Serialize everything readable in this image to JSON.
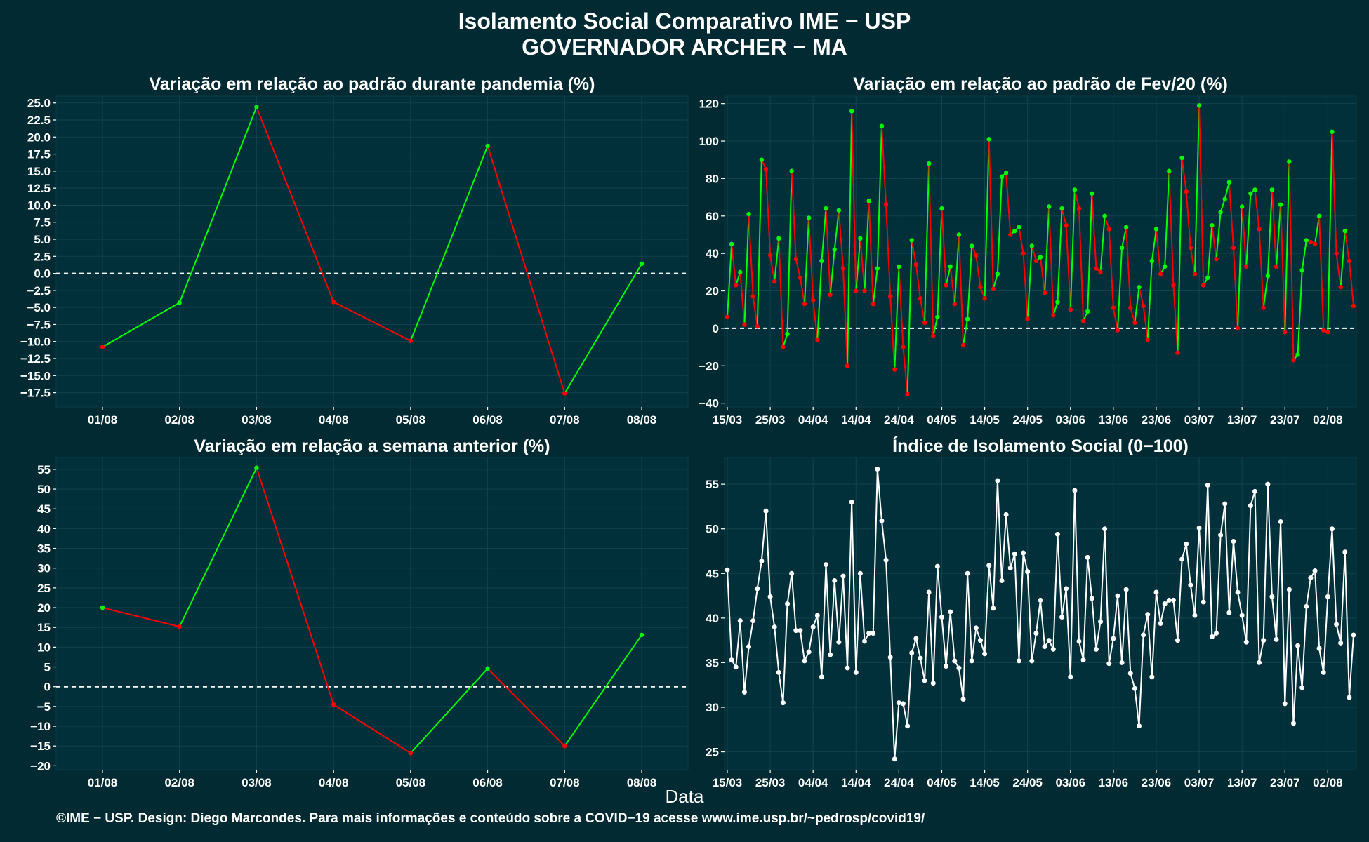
{
  "title_line1": "Isolamento Social Comparativo IME − USP",
  "title_line2": "GOVERNADOR ARCHER − MA",
  "xlabel": "Data",
  "footer": "©IME − USP. Design: Diego Marcondes. Para mais informações e conteúdo sobre a COVID−19 acesse www.ime.usp.br/~pedrosp/covid19/",
  "colors": {
    "background": "#022a33",
    "panel": "#02303a",
    "grid": "#10434d",
    "up": "#00ff00",
    "down": "#ff0000",
    "index": "#ffffff",
    "reference": "#ffffff"
  },
  "chart_data": [
    {
      "id": "pandemic",
      "type": "line",
      "title": "Variação em relação ao padrão durante pandemia (%)",
      "x": [
        "01/08",
        "02/08",
        "03/08",
        "04/08",
        "05/08",
        "06/08",
        "07/08",
        "08/08"
      ],
      "values": [
        -10.8,
        -4.3,
        24.4,
        -4.2,
        -9.9,
        18.7,
        -17.6,
        1.4
      ],
      "ylim": [
        -19.6,
        26.0
      ],
      "yticks": [
        -17.5,
        -15.0,
        -12.5,
        -10.0,
        -7.5,
        -5.0,
        -2.5,
        0.0,
        2.5,
        5.0,
        7.5,
        10.0,
        12.5,
        15.0,
        17.5,
        20.0,
        22.5,
        25.0
      ],
      "ytick_labels": [
        "−17.5",
        "−15.0",
        "−12.5",
        "−10.0",
        "−7.5",
        "−5.0",
        "−2.5",
        "0.0",
        "2.5",
        "5.0",
        "7.5",
        "10.0",
        "12.5",
        "15.0",
        "17.5",
        "20.0",
        "22.5",
        "25.0"
      ],
      "reference_line": 0,
      "grid": true
    },
    {
      "id": "feb20",
      "type": "line",
      "title": "Variação em relação ao padrão de Fev/20 (%)",
      "x_start": "15/03",
      "x_tick_labels": [
        "15/03",
        "25/03",
        "04/04",
        "14/04",
        "24/04",
        "04/05",
        "14/05",
        "24/05",
        "03/06",
        "13/06",
        "23/06",
        "03/07",
        "13/07",
        "23/07",
        "02/08"
      ],
      "x_tick_days": [
        0,
        10,
        20,
        30,
        40,
        50,
        60,
        70,
        80,
        90,
        100,
        110,
        120,
        130,
        140
      ],
      "values": [
        6,
        45,
        23,
        30,
        2,
        61,
        17,
        1,
        90,
        85,
        39,
        25,
        48,
        -10,
        -3,
        84,
        37,
        27,
        13,
        59,
        15,
        -6,
        36,
        64,
        18,
        42,
        63,
        32,
        -20,
        116,
        20,
        48,
        20,
        68,
        13,
        32,
        108,
        66,
        17,
        -22,
        33,
        -10,
        -35,
        47,
        34,
        16,
        3,
        88,
        -4,
        6,
        64,
        23,
        33,
        13,
        50,
        -9,
        5,
        44,
        39,
        22,
        16,
        101,
        21,
        29,
        81,
        83,
        50,
        52,
        54,
        40,
        5,
        44,
        36,
        38,
        19,
        65,
        7,
        14,
        64,
        55,
        10,
        74,
        64,
        4,
        9,
        72,
        32,
        30,
        60,
        53,
        11,
        -1,
        43,
        54,
        11,
        3,
        22,
        12,
        -6,
        36,
        53,
        29,
        33,
        84,
        23,
        -13,
        91,
        73,
        43,
        29,
        119,
        23,
        27,
        55,
        37,
        62,
        69,
        78,
        43,
        0,
        65,
        33,
        72,
        74,
        53,
        11,
        28,
        74,
        33,
        66,
        -2,
        89,
        -17,
        -14,
        31,
        47,
        46,
        45,
        60,
        -1,
        -2,
        105,
        40,
        22,
        52,
        36,
        12
      ],
      "ylim": [
        -42,
        124
      ],
      "yticks": [
        -40,
        -20,
        0,
        20,
        40,
        60,
        80,
        100,
        120
      ],
      "ytick_labels": [
        "−40",
        "−20",
        "0",
        "20",
        "40",
        "60",
        "80",
        "100",
        "120"
      ],
      "reference_line": 0,
      "grid": true
    },
    {
      "id": "week",
      "type": "line",
      "title": "Variação em relação a semana anterior (%)",
      "x": [
        "01/08",
        "02/08",
        "03/08",
        "04/08",
        "05/08",
        "06/08",
        "07/08",
        "08/08"
      ],
      "values": [
        20.0,
        15.2,
        55.4,
        -4.5,
        -16.8,
        4.6,
        -15.0,
        13.1
      ],
      "ylim": [
        -21,
        58
      ],
      "yticks": [
        -20,
        -15,
        -10,
        -5,
        0,
        5,
        10,
        15,
        20,
        25,
        30,
        35,
        40,
        45,
        50,
        55
      ],
      "ytick_labels": [
        "−20",
        "−15",
        "−10",
        "−5",
        "0",
        "5",
        "10",
        "15",
        "20",
        "25",
        "30",
        "35",
        "40",
        "45",
        "50",
        "55"
      ],
      "reference_line": 0,
      "grid": true
    },
    {
      "id": "index",
      "type": "line",
      "title": "Índice de Isolamento Social (0−100)",
      "x_start": "15/03",
      "x_tick_labels": [
        "15/03",
        "25/03",
        "04/04",
        "14/04",
        "24/04",
        "04/05",
        "14/05",
        "24/05",
        "03/06",
        "13/06",
        "23/06",
        "03/07",
        "13/07",
        "23/07",
        "02/08"
      ],
      "x_tick_days": [
        0,
        10,
        20,
        30,
        40,
        50,
        60,
        70,
        80,
        90,
        100,
        110,
        120,
        130,
        140
      ],
      "values": [
        45.4,
        35.3,
        34.5,
        39.7,
        31.7,
        36.8,
        39.7,
        43.3,
        46.4,
        52.0,
        42.4,
        39.0,
        33.9,
        30.5,
        41.6,
        45.0,
        38.6,
        38.6,
        35.2,
        36.2,
        39.0,
        40.3,
        33.4,
        46.0,
        35.9,
        44.2,
        37.3,
        44.7,
        34.4,
        53.0,
        33.9,
        45.0,
        37.4,
        38.3,
        38.3,
        56.7,
        50.9,
        46.5,
        35.6,
        24.2,
        30.5,
        30.4,
        27.9,
        36.1,
        37.7,
        35.5,
        33.0,
        42.9,
        32.7,
        45.8,
        40.1,
        34.6,
        40.7,
        35.2,
        34.4,
        30.9,
        45.0,
        35.2,
        38.9,
        37.5,
        36.0,
        45.9,
        41.1,
        55.4,
        44.2,
        51.6,
        45.6,
        47.2,
        35.2,
        47.3,
        45.2,
        35.2,
        38.3,
        42.0,
        36.8,
        37.5,
        36.5,
        49.4,
        40.1,
        43.3,
        33.4,
        54.3,
        37.4,
        35.3,
        46.8,
        42.2,
        36.5,
        39.6,
        50.0,
        34.9,
        37.7,
        42.5,
        35.0,
        43.2,
        33.8,
        32.1,
        27.9,
        38.1,
        40.4,
        33.4,
        42.9,
        39.4,
        41.6,
        42.0,
        42.0,
        37.5,
        46.6,
        48.3,
        43.7,
        40.3,
        50.1,
        41.8,
        54.9,
        37.9,
        38.3,
        49.3,
        52.8,
        40.6,
        48.6,
        42.9,
        40.3,
        37.3,
        52.6,
        54.2,
        35.0,
        37.5,
        55.0,
        42.4,
        37.6,
        50.8,
        30.4,
        43.2,
        28.2,
        36.9,
        32.2,
        41.3,
        44.5,
        45.3,
        36.6,
        33.9,
        42.4,
        50.0,
        39.3,
        37.2,
        47.4,
        31.1,
        38.1
      ],
      "ylim": [
        23,
        58
      ],
      "yticks": [
        25,
        30,
        35,
        40,
        45,
        50,
        55
      ],
      "ytick_labels": [
        "25",
        "30",
        "35",
        "40",
        "45",
        "50",
        "55"
      ],
      "grid": true
    }
  ]
}
